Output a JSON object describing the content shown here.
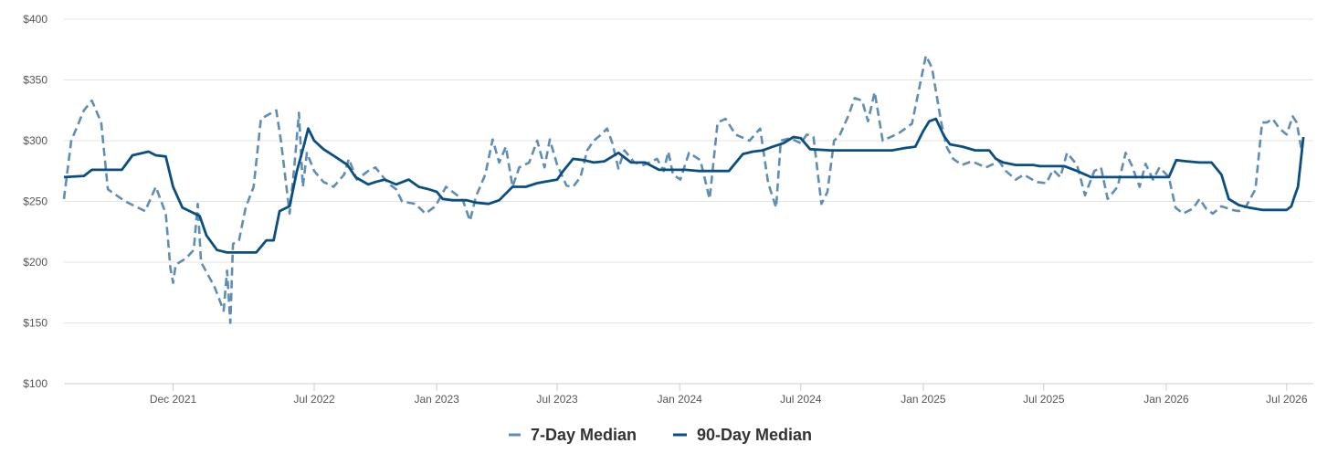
{
  "colors": {
    "series_7day": "#5f8db3",
    "series_90day": "#0b4f82",
    "grid": "#e3e3e3",
    "axis": "#cccccc",
    "tick_text": "#555555",
    "legend_text": "#333333"
  },
  "chart_data": {
    "type": "line",
    "title": "",
    "xlabel": "",
    "ylabel": "",
    "ylim": [
      100,
      400
    ],
    "xlim": [
      "2021-06-20",
      "2026-08-10"
    ],
    "y_ticks": [
      100,
      150,
      200,
      250,
      300,
      350,
      400
    ],
    "y_tick_labels": [
      "$100",
      "$150",
      "$200",
      "$250",
      "$300",
      "$350",
      "$400"
    ],
    "x_ticks": [
      "2021-12-01",
      "2022-07-01",
      "2023-01-01",
      "2023-07-01",
      "2024-01-01",
      "2024-07-01",
      "2025-01-01",
      "2025-07-01",
      "2026-01-01",
      "2026-07-01"
    ],
    "x_tick_labels": [
      "Dec 2021",
      "Jul 2022",
      "Jan 2023",
      "Jul 2023",
      "Jan 2024",
      "Jul 2024",
      "Jan 2025",
      "Jul 2025",
      "Jan 2026",
      "Jul 2026"
    ],
    "grid": true,
    "legend_position": "bottom",
    "series": [
      {
        "name": "7-Day Median",
        "style": "dashed",
        "points": [
          [
            "2021-06-20",
            252
          ],
          [
            "2021-07-01",
            300
          ],
          [
            "2021-07-20",
            325
          ],
          [
            "2021-08-01",
            333
          ],
          [
            "2021-08-15",
            315
          ],
          [
            "2021-08-25",
            260
          ],
          [
            "2021-09-20",
            250
          ],
          [
            "2021-10-20",
            242
          ],
          [
            "2021-11-05",
            262
          ],
          [
            "2021-11-20",
            240
          ],
          [
            "2021-11-27",
            195
          ],
          [
            "2021-12-01",
            183
          ],
          [
            "2021-12-05",
            198
          ],
          [
            "2021-12-20",
            203
          ],
          [
            "2022-01-01",
            210
          ],
          [
            "2022-01-07",
            248
          ],
          [
            "2022-01-12",
            200
          ],
          [
            "2022-02-01",
            180
          ],
          [
            "2022-02-15",
            160
          ],
          [
            "2022-02-20",
            193
          ],
          [
            "2022-02-25",
            150
          ],
          [
            "2022-03-01",
            215
          ],
          [
            "2022-03-10",
            218
          ],
          [
            "2022-03-20",
            245
          ],
          [
            "2022-04-01",
            262
          ],
          [
            "2022-04-12",
            318
          ],
          [
            "2022-04-25",
            322
          ],
          [
            "2022-05-05",
            325
          ],
          [
            "2022-05-12",
            300
          ],
          [
            "2022-05-25",
            240
          ],
          [
            "2022-06-01",
            278
          ],
          [
            "2022-06-08",
            323
          ],
          [
            "2022-06-14",
            262
          ],
          [
            "2022-06-20",
            290
          ],
          [
            "2022-07-01",
            275
          ],
          [
            "2022-07-15",
            266
          ],
          [
            "2022-07-30",
            262
          ],
          [
            "2022-08-15",
            272
          ],
          [
            "2022-08-22",
            285
          ],
          [
            "2022-09-03",
            268
          ],
          [
            "2022-09-20",
            275
          ],
          [
            "2022-10-01",
            278
          ],
          [
            "2022-10-20",
            265
          ],
          [
            "2022-11-01",
            260
          ],
          [
            "2022-11-10",
            250
          ],
          [
            "2022-11-30",
            248
          ],
          [
            "2022-12-15",
            240
          ],
          [
            "2022-12-30",
            246
          ],
          [
            "2023-01-15",
            262
          ],
          [
            "2023-02-01",
            255
          ],
          [
            "2023-02-10",
            250
          ],
          [
            "2023-02-20",
            234
          ],
          [
            "2023-03-01",
            254
          ],
          [
            "2023-03-15",
            272
          ],
          [
            "2023-03-26",
            301
          ],
          [
            "2023-04-05",
            282
          ],
          [
            "2023-04-15",
            295
          ],
          [
            "2023-04-25",
            262
          ],
          [
            "2023-05-05",
            278
          ],
          [
            "2023-05-20",
            282
          ],
          [
            "2023-06-01",
            300
          ],
          [
            "2023-06-12",
            278
          ],
          [
            "2023-06-20",
            301
          ],
          [
            "2023-07-01",
            280
          ],
          [
            "2023-07-15",
            263
          ],
          [
            "2023-07-25",
            262
          ],
          [
            "2023-08-05",
            270
          ],
          [
            "2023-08-15",
            292
          ],
          [
            "2023-08-25",
            300
          ],
          [
            "2023-09-05",
            305
          ],
          [
            "2023-09-14",
            310
          ],
          [
            "2023-09-22",
            298
          ],
          [
            "2023-10-01",
            277
          ],
          [
            "2023-10-10",
            292
          ],
          [
            "2023-10-25",
            282
          ],
          [
            "2023-11-08",
            280
          ],
          [
            "2023-11-28",
            285
          ],
          [
            "2023-12-08",
            275
          ],
          [
            "2023-12-15",
            291
          ],
          [
            "2023-12-22",
            272
          ],
          [
            "2024-01-02",
            268
          ],
          [
            "2024-01-15",
            290
          ],
          [
            "2024-02-01",
            284
          ],
          [
            "2024-02-15",
            252
          ],
          [
            "2024-02-27",
            315
          ],
          [
            "2024-03-10",
            318
          ],
          [
            "2024-03-25",
            305
          ],
          [
            "2024-04-15",
            300
          ],
          [
            "2024-05-01",
            310
          ],
          [
            "2024-05-13",
            265
          ],
          [
            "2024-05-25",
            245
          ],
          [
            "2024-06-01",
            300
          ],
          [
            "2024-06-15",
            302
          ],
          [
            "2024-07-01",
            298
          ],
          [
            "2024-07-10",
            305
          ],
          [
            "2024-07-20",
            303
          ],
          [
            "2024-08-01",
            248
          ],
          [
            "2024-08-10",
            258
          ],
          [
            "2024-08-20",
            300
          ],
          [
            "2024-08-28",
            304
          ],
          [
            "2024-09-10",
            320
          ],
          [
            "2024-09-20",
            335
          ],
          [
            "2024-10-01",
            333
          ],
          [
            "2024-10-10",
            316
          ],
          [
            "2024-10-20",
            340
          ],
          [
            "2024-11-01",
            300
          ],
          [
            "2024-11-25",
            306
          ],
          [
            "2024-12-15",
            314
          ],
          [
            "2025-01-05",
            370
          ],
          [
            "2025-01-14",
            360
          ],
          [
            "2025-01-28",
            315
          ],
          [
            "2025-02-05",
            295
          ],
          [
            "2025-02-15",
            285
          ],
          [
            "2025-02-28",
            280
          ],
          [
            "2025-03-15",
            283
          ],
          [
            "2025-04-05",
            278
          ],
          [
            "2025-04-25",
            283
          ],
          [
            "2025-05-05",
            275
          ],
          [
            "2025-05-20",
            268
          ],
          [
            "2025-06-01",
            272
          ],
          [
            "2025-06-20",
            266
          ],
          [
            "2025-07-05",
            265
          ],
          [
            "2025-07-15",
            276
          ],
          [
            "2025-07-26",
            270
          ],
          [
            "2025-08-05",
            290
          ],
          [
            "2025-08-20",
            280
          ],
          [
            "2025-09-01",
            255
          ],
          [
            "2025-09-15",
            275
          ],
          [
            "2025-09-25",
            278
          ],
          [
            "2025-10-05",
            252
          ],
          [
            "2025-10-20",
            262
          ],
          [
            "2025-11-01",
            290
          ],
          [
            "2025-11-10",
            280
          ],
          [
            "2025-11-22",
            262
          ],
          [
            "2025-12-01",
            281
          ],
          [
            "2025-12-12",
            268
          ],
          [
            "2025-12-22",
            278
          ],
          [
            "2026-01-05",
            270
          ],
          [
            "2026-01-15",
            245
          ],
          [
            "2026-01-26",
            240
          ],
          [
            "2026-02-10",
            244
          ],
          [
            "2026-02-20",
            252
          ],
          [
            "2026-03-02",
            244
          ],
          [
            "2026-03-12",
            240
          ],
          [
            "2026-03-25",
            246
          ],
          [
            "2026-04-10",
            243
          ],
          [
            "2026-04-20",
            242
          ],
          [
            "2026-05-01",
            246
          ],
          [
            "2026-05-15",
            260
          ],
          [
            "2026-05-25",
            315
          ],
          [
            "2026-06-01",
            315
          ],
          [
            "2026-06-10",
            318
          ],
          [
            "2026-06-20",
            310
          ],
          [
            "2026-07-01",
            305
          ],
          [
            "2026-07-10",
            320
          ],
          [
            "2026-07-16",
            315
          ],
          [
            "2026-07-24",
            290
          ]
        ]
      },
      {
        "name": "90-Day Median",
        "style": "solid",
        "points": [
          [
            "2021-06-20",
            270
          ],
          [
            "2021-07-20",
            271
          ],
          [
            "2021-08-01",
            276
          ],
          [
            "2021-08-25",
            276
          ],
          [
            "2021-09-15",
            276
          ],
          [
            "2021-10-01",
            288
          ],
          [
            "2021-10-25",
            291
          ],
          [
            "2021-11-05",
            288
          ],
          [
            "2021-11-20",
            287
          ],
          [
            "2021-12-01",
            262
          ],
          [
            "2021-12-15",
            245
          ],
          [
            "2022-01-10",
            238
          ],
          [
            "2022-01-20",
            222
          ],
          [
            "2022-02-05",
            210
          ],
          [
            "2022-02-20",
            208
          ],
          [
            "2022-03-20",
            208
          ],
          [
            "2022-04-05",
            208
          ],
          [
            "2022-04-20",
            218
          ],
          [
            "2022-05-01",
            218
          ],
          [
            "2022-05-10",
            242
          ],
          [
            "2022-05-25",
            246
          ],
          [
            "2022-06-05",
            275
          ],
          [
            "2022-06-15",
            295
          ],
          [
            "2022-06-22",
            310
          ],
          [
            "2022-07-01",
            300
          ],
          [
            "2022-07-15",
            293
          ],
          [
            "2022-08-01",
            287
          ],
          [
            "2022-08-20",
            280
          ],
          [
            "2022-09-01",
            270
          ],
          [
            "2022-09-20",
            264
          ],
          [
            "2022-10-01",
            266
          ],
          [
            "2022-10-15",
            268
          ],
          [
            "2022-11-01",
            264
          ],
          [
            "2022-11-20",
            268
          ],
          [
            "2022-12-05",
            262
          ],
          [
            "2022-12-20",
            260
          ],
          [
            "2023-01-01",
            258
          ],
          [
            "2023-01-10",
            252
          ],
          [
            "2023-01-25",
            251
          ],
          [
            "2023-02-15",
            251
          ],
          [
            "2023-03-01",
            249
          ],
          [
            "2023-03-20",
            248
          ],
          [
            "2023-04-05",
            251
          ],
          [
            "2023-04-25",
            262
          ],
          [
            "2023-05-15",
            262
          ],
          [
            "2023-06-01",
            265
          ],
          [
            "2023-06-10",
            266
          ],
          [
            "2023-07-01",
            268
          ],
          [
            "2023-07-10",
            275
          ],
          [
            "2023-07-25",
            285
          ],
          [
            "2023-08-10",
            284
          ],
          [
            "2023-08-25",
            282
          ],
          [
            "2023-09-10",
            283
          ],
          [
            "2023-10-01",
            290
          ],
          [
            "2023-10-20",
            282
          ],
          [
            "2023-11-10",
            282
          ],
          [
            "2023-12-01",
            276
          ],
          [
            "2024-01-10",
            276
          ],
          [
            "2024-01-30",
            275
          ],
          [
            "2024-02-20",
            275
          ],
          [
            "2024-03-15",
            275
          ],
          [
            "2024-04-05",
            289
          ],
          [
            "2024-04-20",
            291
          ],
          [
            "2024-05-05",
            292
          ],
          [
            "2024-05-20",
            295
          ],
          [
            "2024-06-05",
            298
          ],
          [
            "2024-06-20",
            303
          ],
          [
            "2024-07-01",
            302
          ],
          [
            "2024-07-15",
            293
          ],
          [
            "2024-08-15",
            292
          ],
          [
            "2024-09-15",
            292
          ],
          [
            "2024-10-15",
            292
          ],
          [
            "2024-11-15",
            292
          ],
          [
            "2024-12-05",
            294
          ],
          [
            "2024-12-20",
            295
          ],
          [
            "2025-01-01",
            308
          ],
          [
            "2025-01-10",
            316
          ],
          [
            "2025-01-20",
            318
          ],
          [
            "2025-02-01",
            304
          ],
          [
            "2025-02-10",
            297
          ],
          [
            "2025-03-01",
            295
          ],
          [
            "2025-03-20",
            292
          ],
          [
            "2025-04-10",
            292
          ],
          [
            "2025-04-20",
            285
          ],
          [
            "2025-05-01",
            282
          ],
          [
            "2025-05-20",
            280
          ],
          [
            "2025-06-15",
            280
          ],
          [
            "2025-06-25",
            279
          ],
          [
            "2025-07-15",
            279
          ],
          [
            "2025-08-01",
            279
          ],
          [
            "2025-08-20",
            275
          ],
          [
            "2025-09-10",
            270
          ],
          [
            "2025-10-15",
            270
          ],
          [
            "2025-11-30",
            270
          ],
          [
            "2025-12-20",
            270
          ],
          [
            "2026-01-05",
            270
          ],
          [
            "2026-01-16",
            284
          ],
          [
            "2026-02-01",
            283
          ],
          [
            "2026-02-20",
            282
          ],
          [
            "2026-03-10",
            282
          ],
          [
            "2026-03-25",
            272
          ],
          [
            "2026-04-05",
            252
          ],
          [
            "2026-04-20",
            247
          ],
          [
            "2026-05-05",
            245
          ],
          [
            "2026-05-25",
            243
          ],
          [
            "2026-06-15",
            243
          ],
          [
            "2026-07-01",
            243
          ],
          [
            "2026-07-08",
            246
          ],
          [
            "2026-07-12",
            253
          ],
          [
            "2026-07-18",
            262
          ],
          [
            "2026-07-26",
            303
          ]
        ]
      }
    ]
  },
  "legend": [
    {
      "label": "7-Day Median"
    },
    {
      "label": "90-Day Median"
    }
  ]
}
